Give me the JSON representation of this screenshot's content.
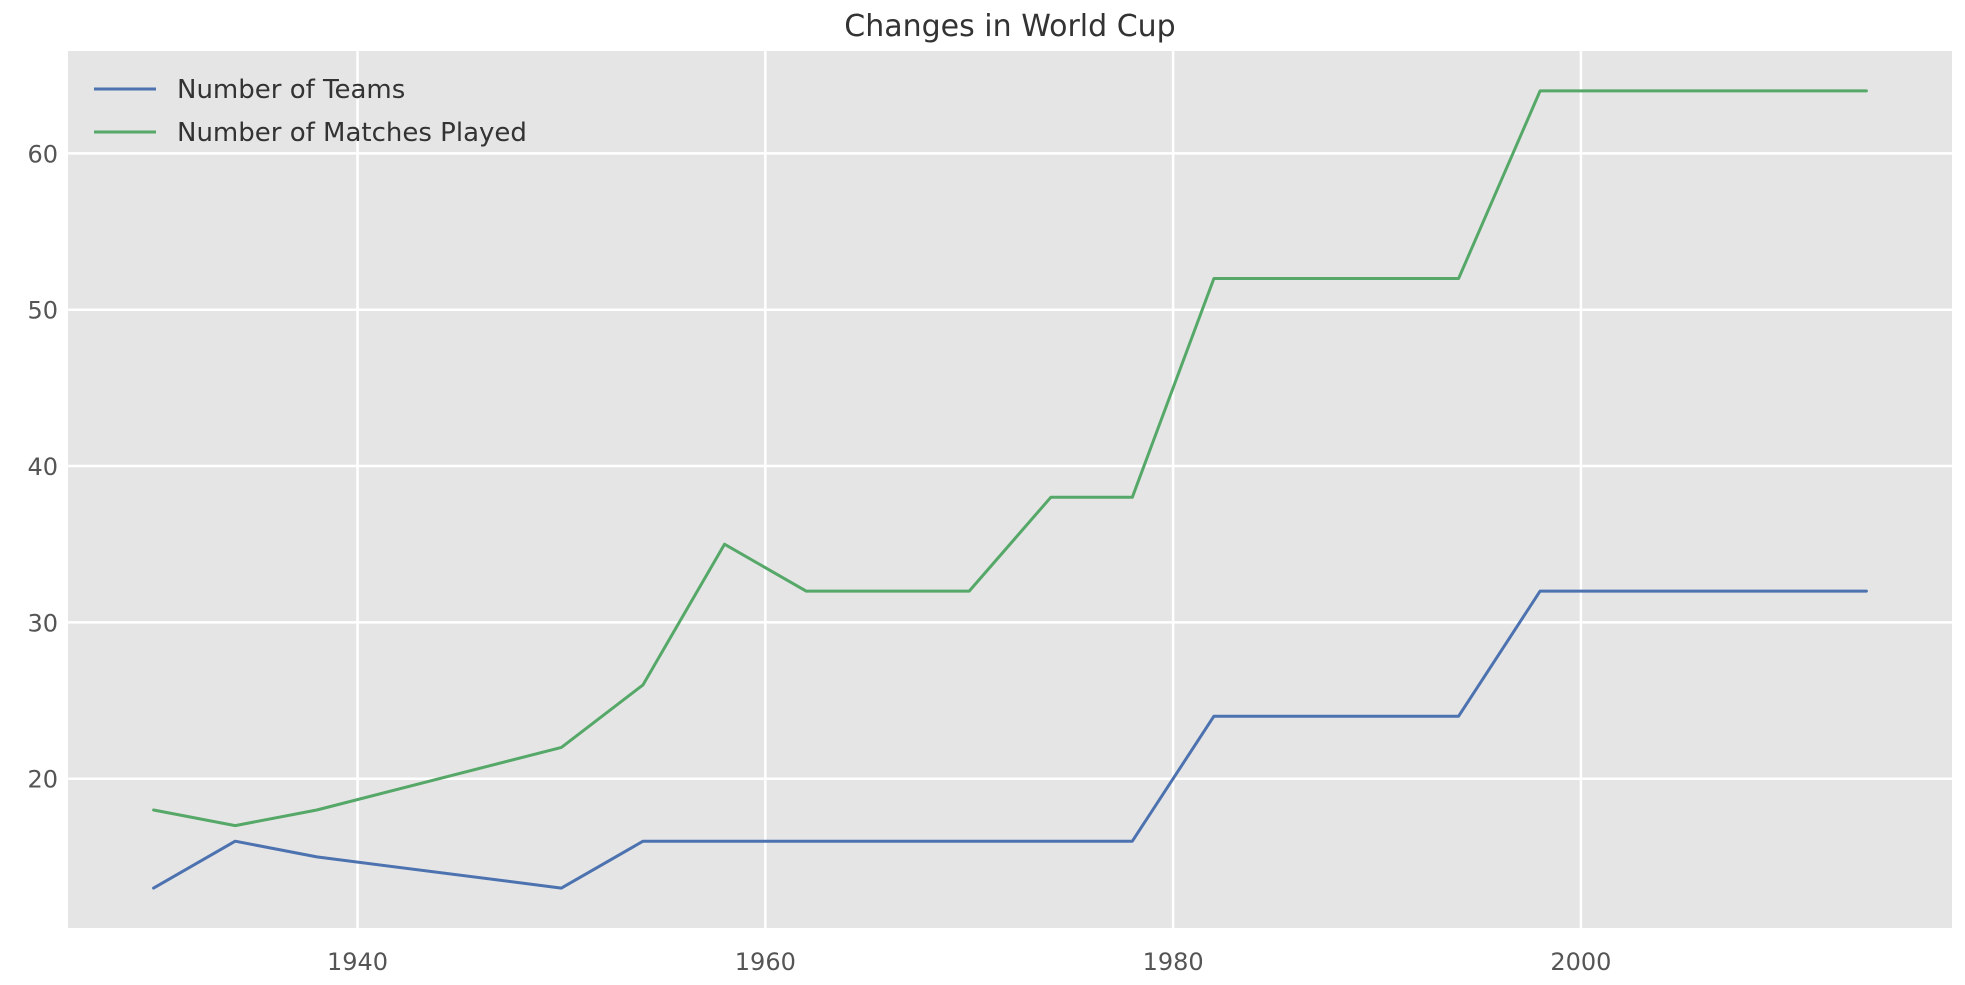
{
  "chart_data": {
    "type": "line",
    "title": "Changes in World Cup",
    "xlabel": "",
    "ylabel": "",
    "x": [
      1930,
      1934,
      1938,
      1950,
      1954,
      1958,
      1962,
      1966,
      1970,
      1974,
      1978,
      1982,
      1986,
      1990,
      1994,
      1998,
      2002,
      2006,
      2010,
      2014
    ],
    "series": [
      {
        "name": "Number of Teams",
        "color": "#4c72b0",
        "values": [
          13,
          16,
          15,
          13,
          16,
          16,
          16,
          16,
          16,
          16,
          16,
          24,
          24,
          24,
          24,
          32,
          32,
          32,
          32,
          32
        ]
      },
      {
        "name": "Number of Matches Played",
        "color": "#55a868",
        "values": [
          18,
          17,
          18,
          22,
          26,
          35,
          32,
          32,
          32,
          38,
          38,
          52,
          52,
          52,
          52,
          64,
          64,
          64,
          64,
          64
        ]
      }
    ],
    "xlim": [
      1925.8,
      2018.2
    ],
    "ylim": [
      10.45,
      66.55
    ],
    "xticks": [
      1940,
      1960,
      1980,
      2000
    ],
    "yticks": [
      20,
      30,
      40,
      50,
      60
    ],
    "grid": true,
    "legend_position": "top-left",
    "style": {
      "background": "#e5e5e5",
      "grid_color": "#ffffff"
    }
  }
}
